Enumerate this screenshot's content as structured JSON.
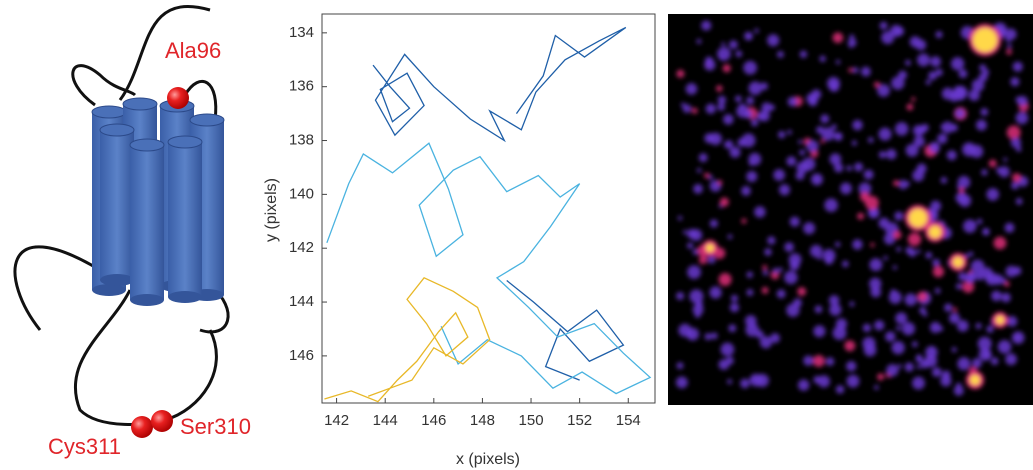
{
  "diagram": {
    "labels": [
      "Ala96",
      "Cys311",
      "Ser310"
    ]
  },
  "chart_data": {
    "type": "line",
    "xlabel": "x (pixels)",
    "ylabel": "y (pixels)",
    "xlim": [
      141.4,
      155.1
    ],
    "ylim": [
      133.3,
      147.75
    ],
    "y_inverted": true,
    "xticks": [
      142,
      144,
      146,
      148,
      150,
      152,
      154
    ],
    "yticks": [
      134,
      136,
      138,
      140,
      142,
      144,
      146
    ],
    "series": [
      {
        "color": "#1f5fa8",
        "x": [
          143.5,
          144.2,
          145.0,
          144.3,
          143.8,
          144.9,
          145.6,
          144.4,
          143.6,
          144.8,
          146.0,
          147.5,
          148.9,
          148.3,
          149.6,
          150.2,
          151.4,
          152.8,
          153.9,
          152.2,
          151.0,
          150.5,
          149.4
        ],
        "values": [
          135.2,
          136.0,
          136.8,
          137.3,
          136.1,
          135.5,
          136.7,
          137.8,
          136.5,
          134.8,
          136.0,
          137.2,
          138.0,
          136.9,
          137.6,
          136.2,
          135.0,
          134.3,
          133.8,
          134.9,
          134.1,
          135.6,
          137.0
        ]
      },
      {
        "color": "#1f5fa8",
        "x": [
          149.0,
          150.1,
          151.5,
          152.7,
          153.8,
          152.4,
          151.2,
          150.6,
          152.0
        ],
        "values": [
          143.2,
          144.0,
          145.1,
          144.3,
          145.6,
          146.2,
          145.0,
          146.4,
          146.9
        ]
      },
      {
        "color": "#4ab3e0",
        "x": [
          141.6,
          142.5,
          143.1,
          144.3,
          145.8,
          146.6,
          147.2,
          146.1,
          145.4,
          146.8,
          147.9,
          149.0,
          150.3,
          151.2,
          152.0,
          150.8,
          149.7,
          148.6,
          149.9,
          151.1,
          152.6,
          153.8,
          154.9,
          153.5,
          152.1,
          150.9,
          149.6,
          148.2,
          147.0,
          146.3
        ],
        "values": [
          141.8,
          139.6,
          138.5,
          139.2,
          138.1,
          139.8,
          141.5,
          142.3,
          140.4,
          139.1,
          138.6,
          139.9,
          139.3,
          140.1,
          139.6,
          141.2,
          142.5,
          143.1,
          144.2,
          145.3,
          144.8,
          145.9,
          146.8,
          147.4,
          146.6,
          147.2,
          146.0,
          145.4,
          146.3,
          144.9
        ]
      },
      {
        "color": "#e8b828",
        "x": [
          141.5,
          142.6,
          143.7,
          144.5,
          145.3,
          146.2,
          146.9,
          147.4,
          146.5,
          145.7,
          144.9,
          145.6,
          146.8,
          147.8,
          148.3,
          147.2,
          146.0,
          145.1,
          144.2,
          143.3
        ],
        "values": [
          147.6,
          147.3,
          147.7,
          146.9,
          146.2,
          145.1,
          144.4,
          145.3,
          146.0,
          144.8,
          143.9,
          143.1,
          143.6,
          144.2,
          145.4,
          146.3,
          145.7,
          146.9,
          147.2,
          147.5
        ]
      }
    ]
  }
}
